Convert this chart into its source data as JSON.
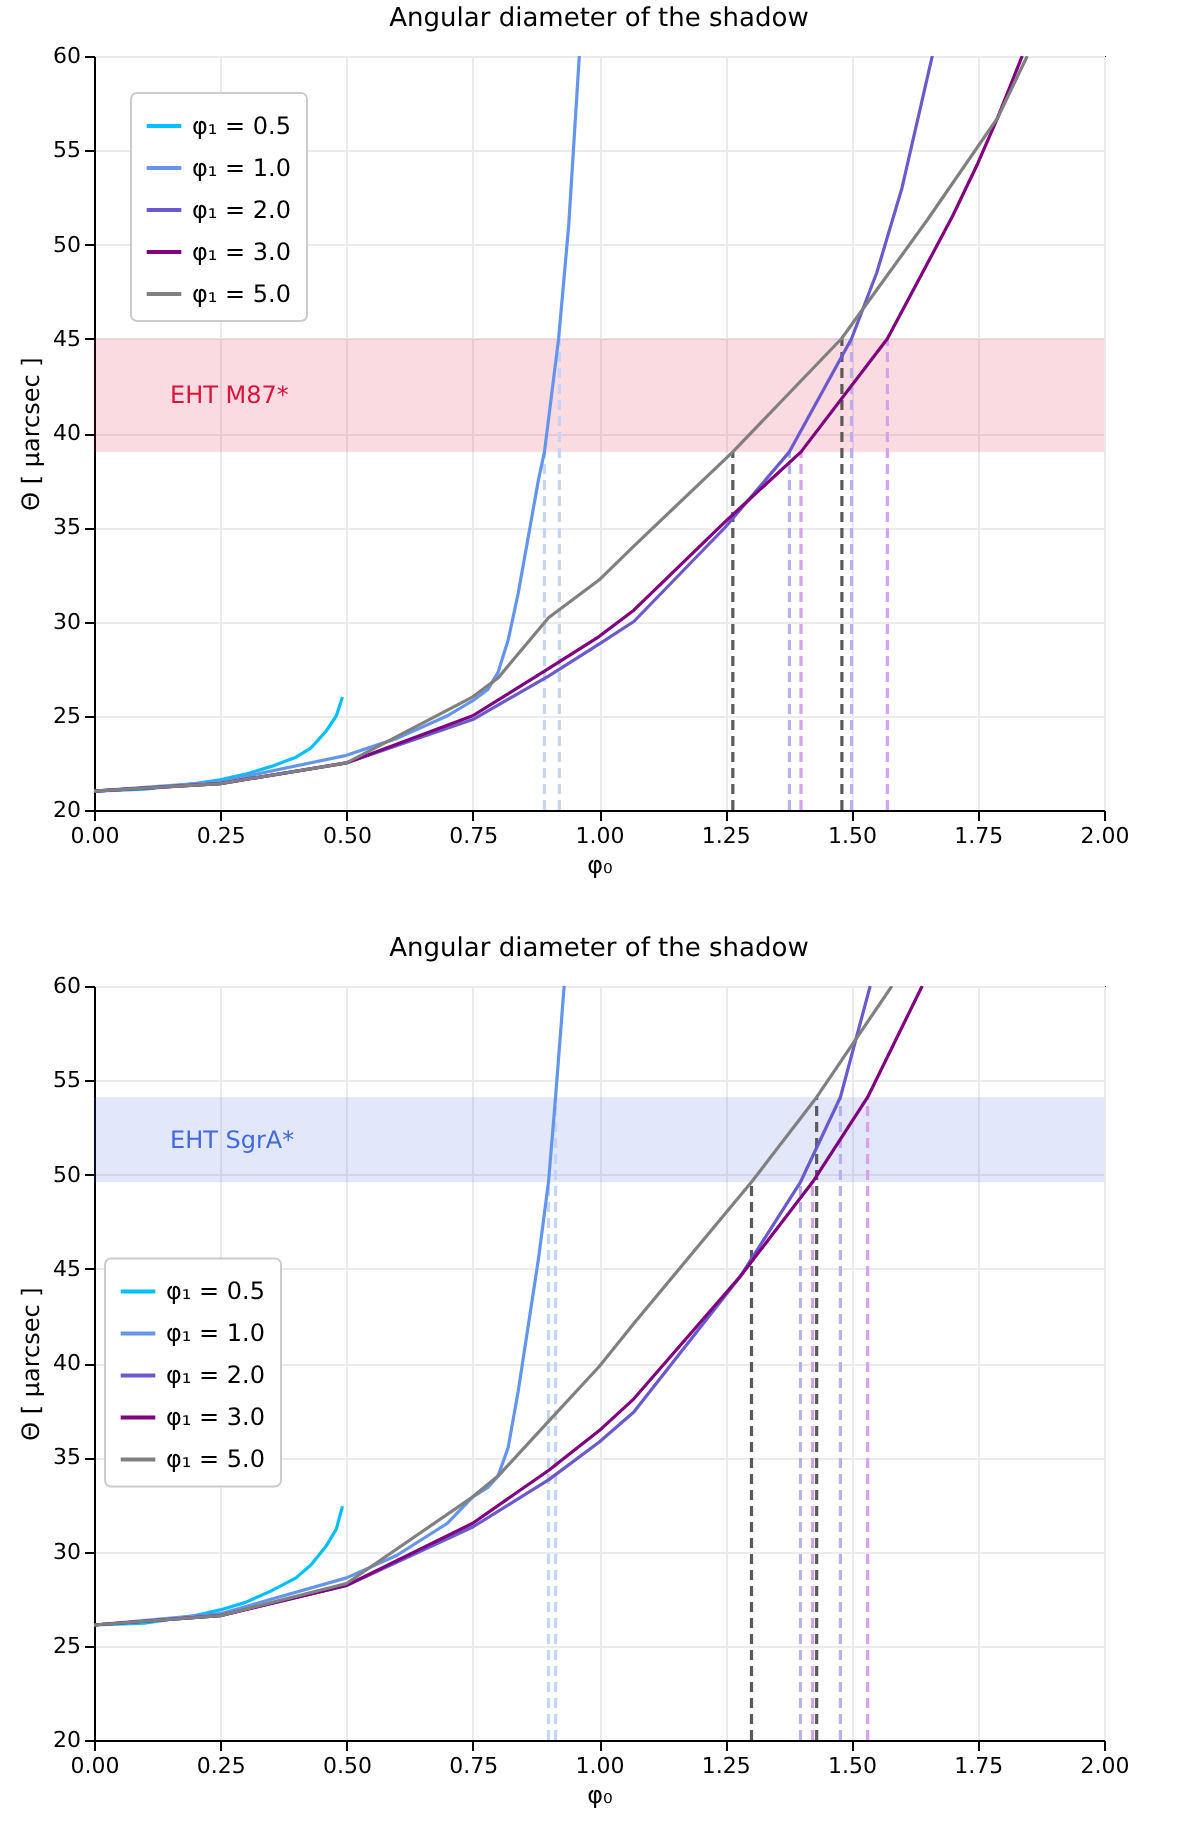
{
  "chart_data": [
    {
      "type": "line",
      "title": "Angular diameter of the shadow",
      "xlabel": "φ₀",
      "ylabel": "Θ [ μarcsec ]",
      "grid": true,
      "legend": "top left",
      "xlim": [
        0,
        2
      ],
      "xticks": [
        {
          "value": 0,
          "label": "0.00"
        },
        {
          "value": 0.25,
          "label": "0.25"
        },
        {
          "value": 0.5,
          "label": "0.50"
        },
        {
          "value": 0.75,
          "label": "0.75"
        },
        {
          "value": 1,
          "label": "1.00"
        },
        {
          "value": 1.25,
          "label": "1.25"
        },
        {
          "value": 1.5,
          "label": "1.50"
        },
        {
          "value": 1.75,
          "label": "1.75"
        },
        {
          "value": 2,
          "label": "2.00"
        }
      ],
      "ylim": [
        20,
        60
      ],
      "yticks": [
        20,
        25,
        30,
        35,
        40,
        45,
        50,
        55,
        60
      ],
      "bands": [
        {
          "axis": "y",
          "from": 39,
          "to": 45,
          "label": "EHT M87*",
          "color": "#dc143c"
        }
      ],
      "series": [
        {
          "name": "φ₁ = 0.5",
          "color": "#00bfff",
          "x": [
            0,
            0.1,
            0.2,
            0.25,
            0.3,
            0.35,
            0.4,
            0.43,
            0.46,
            0.48,
            0.492
          ],
          "values": [
            21,
            21.1,
            21.4,
            21.6,
            21.9,
            22.3,
            22.8,
            23.3,
            24.2,
            25,
            26
          ]
        },
        {
          "name": "φ₁ = 1.0",
          "color": "#6495ed",
          "x": [
            0,
            0.25,
            0.5,
            0.6,
            0.7,
            0.75,
            0.78,
            0.8,
            0.82,
            0.84,
            0.86,
            0.88,
            0.892,
            0.92,
            0.94,
            0.961
          ],
          "values": [
            21,
            21.5,
            22.9,
            23.8,
            25,
            25.8,
            26.4,
            27.3,
            29,
            31.5,
            34.5,
            37.5,
            39,
            45,
            51,
            60
          ]
        },
        {
          "name": "φ₁ = 2.0",
          "color": "#6a5acd",
          "x": [
            0,
            0.25,
            0.5,
            0.75,
            0.9,
            1,
            1.069,
            1.25,
            1.377,
            1.5,
            1.55,
            1.6,
            1.66
          ],
          "values": [
            21,
            21.4,
            22.5,
            24.8,
            27.1,
            28.8,
            30,
            35,
            39,
            45,
            48.5,
            53,
            60
          ]
        },
        {
          "name": "φ₁ = 3.0",
          "color": "#800080",
          "x": [
            0,
            0.25,
            0.5,
            0.75,
            0.9,
            1,
            1.069,
            1.25,
            1.4,
            1.571,
            1.7,
            1.75,
            1.789,
            1.838
          ],
          "values": [
            21,
            21.4,
            22.5,
            25,
            27.5,
            29.2,
            30.6,
            35.3,
            39,
            45,
            51.5,
            54.3,
            56.7,
            60
          ]
        },
        {
          "name": "φ₁ = 5.0",
          "color": "#808080",
          "x": [
            0,
            0.25,
            0.5,
            0.75,
            0.8,
            0.9,
            1,
            1.069,
            1.265,
            1.48,
            1.65,
            1.789,
            1.848
          ],
          "values": [
            21,
            21.4,
            22.5,
            26,
            27,
            30.2,
            32.2,
            34,
            39,
            45,
            51.3,
            56.7,
            60
          ]
        },
        {
          "type": "line",
          "line_style": "dashed",
          "color": "#c5d5f5",
          "x": [
            0.892,
            0.892
          ],
          "values": [
            20,
            39
          ]
        },
        {
          "type": "line",
          "line_style": "dashed",
          "color": "#c5d5f5",
          "x": [
            0.9215,
            0.9215
          ],
          "values": [
            20,
            45
          ]
        },
        {
          "type": "line",
          "line_style": "dashed",
          "color": "#5a5a5a",
          "x": [
            1.265,
            1.265
          ],
          "values": [
            20,
            39
          ]
        },
        {
          "type": "line",
          "line_style": "dashed",
          "color": "#5a5a5a",
          "x": [
            1.481,
            1.481
          ],
          "values": [
            20,
            45
          ]
        },
        {
          "type": "line",
          "line_style": "dashed",
          "color": "#b9b1ee",
          "x": [
            1.377,
            1.377
          ],
          "values": [
            20,
            39
          ]
        },
        {
          "type": "line",
          "line_style": "dashed",
          "color": "#b9b1ee",
          "x": [
            1.5,
            1.5
          ],
          "values": [
            20,
            45
          ]
        },
        {
          "type": "line",
          "line_style": "dashed",
          "color": "#d8a0ee",
          "x": [
            1.4,
            1.4
          ],
          "values": [
            20,
            39
          ]
        },
        {
          "type": "line",
          "line_style": "dashed",
          "color": "#d8a0ee",
          "x": [
            1.571,
            1.571
          ],
          "values": [
            20,
            45
          ]
        }
      ]
    },
    {
      "type": "line",
      "title": "Angular diameter of the shadow",
      "xlabel": "φ₀",
      "ylabel": "Θ [ μarcsec ]",
      "grid": true,
      "legend": "left",
      "xlim": [
        0,
        2
      ],
      "xticks": [
        {
          "value": 0,
          "label": "0.00"
        },
        {
          "value": 0.25,
          "label": "0.25"
        },
        {
          "value": 0.5,
          "label": "0.50"
        },
        {
          "value": 0.75,
          "label": "0.75"
        },
        {
          "value": 1,
          "label": "1.00"
        },
        {
          "value": 1.25,
          "label": "1.25"
        },
        {
          "value": 1.5,
          "label": "1.50"
        },
        {
          "value": 1.75,
          "label": "1.75"
        },
        {
          "value": 2,
          "label": "2.00"
        }
      ],
      "ylim": [
        20,
        60
      ],
      "yticks": [
        20,
        25,
        30,
        35,
        40,
        45,
        50,
        55,
        60
      ],
      "bands": [
        {
          "axis": "y",
          "from": 49.6,
          "to": 54.1,
          "label": "EHT SgrA*",
          "color": "#4169e1"
        }
      ],
      "series": [
        {
          "name": "φ₁ = 0.5",
          "color": "#00bfff",
          "x": [
            0,
            0.1,
            0.2,
            0.25,
            0.3,
            0.35,
            0.4,
            0.43,
            0.46,
            0.48,
            0.492
          ],
          "values": [
            26.1,
            26.2,
            26.6,
            26.9,
            27.3,
            27.9,
            28.6,
            29.3,
            30.3,
            31.2,
            32.4
          ]
        },
        {
          "name": "φ₁ = 1.0",
          "color": "#6495ed",
          "x": [
            0,
            0.25,
            0.5,
            0.6,
            0.7,
            0.75,
            0.78,
            0.8,
            0.82,
            0.84,
            0.86,
            0.88,
            0.9,
            0.914,
            0.931
          ],
          "values": [
            26.1,
            26.7,
            28.6,
            29.8,
            31.5,
            32.9,
            33.4,
            34,
            35.5,
            38.5,
            42,
            45.5,
            49.6,
            54.1,
            60
          ]
        },
        {
          "name": "φ₁ = 2.0",
          "color": "#6a5acd",
          "x": [
            0,
            0.25,
            0.5,
            0.75,
            0.9,
            1,
            1.069,
            1.28,
            1.399,
            1.478,
            1.537
          ],
          "values": [
            26.1,
            26.6,
            28.2,
            31.3,
            33.8,
            35.8,
            37.4,
            44.6,
            49.6,
            54.1,
            60
          ]
        },
        {
          "name": "φ₁ = 3.0",
          "color": "#800080",
          "x": [
            0,
            0.25,
            0.5,
            0.75,
            0.9,
            1,
            1.069,
            1.28,
            1.423,
            1.532,
            1.64
          ],
          "values": [
            26.1,
            26.6,
            28.2,
            31.5,
            34.3,
            36.4,
            38.1,
            44.6,
            49.6,
            54.1,
            60
          ]
        },
        {
          "name": "φ₁ = 5.0",
          "color": "#808080",
          "x": [
            0,
            0.25,
            0.5,
            0.75,
            0.8,
            0.9,
            1,
            1.069,
            1.302,
            1.431,
            1.58
          ],
          "values": [
            26.1,
            26.6,
            28.3,
            32.9,
            34,
            36.9,
            39.8,
            42.1,
            49.6,
            54.1,
            60
          ]
        },
        {
          "type": "line",
          "line_style": "dashed",
          "color": "#c5d5f5",
          "x": [
            0.9,
            0.9
          ],
          "values": [
            20,
            49.6
          ]
        },
        {
          "type": "line",
          "line_style": "dashed",
          "color": "#c5d5f5",
          "x": [
            0.914,
            0.914
          ],
          "values": [
            20,
            54.1
          ]
        },
        {
          "type": "line",
          "line_style": "dashed",
          "color": "#5a5a5a",
          "x": [
            1.302,
            1.302
          ],
          "values": [
            20,
            49.6
          ]
        },
        {
          "type": "line",
          "line_style": "dashed",
          "color": "#5a5a5a",
          "x": [
            1.431,
            1.431
          ],
          "values": [
            20,
            54.1
          ]
        },
        {
          "type": "line",
          "line_style": "dashed",
          "color": "#b9b1ee",
          "x": [
            1.399,
            1.399
          ],
          "values": [
            20,
            49.6
          ]
        },
        {
          "type": "line",
          "line_style": "dashed",
          "color": "#b9b1ee",
          "x": [
            1.478,
            1.478
          ],
          "values": [
            20,
            54.1
          ]
        },
        {
          "type": "line",
          "line_style": "dashed",
          "color": "#d8a0ee",
          "x": [
            1.423,
            1.423
          ],
          "values": [
            20,
            49.6
          ]
        },
        {
          "type": "line",
          "line_style": "dashed",
          "color": "#d8a0ee",
          "x": [
            1.532,
            1.532
          ],
          "values": [
            20,
            54.1
          ]
        }
      ]
    }
  ]
}
